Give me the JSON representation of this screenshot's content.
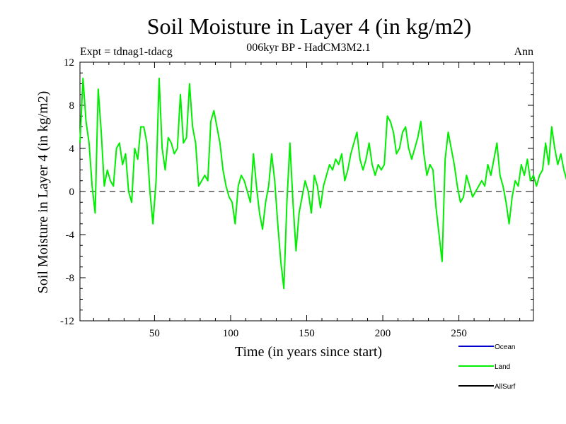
{
  "chart_data": {
    "type": "line",
    "title": "Soil Moisture in Layer 4 (in kg/m2)",
    "subtitle": "006kyr BP - HadCM3M2.1",
    "experiment": "Expt = tdnag1-tdacg",
    "period": "Ann",
    "xlabel": "Time (in years since start)",
    "ylabel": "Soil Moisture in Layer 4 (in kg/m2)",
    "xlim": [
      1,
      299
    ],
    "ylim": [
      -12,
      12
    ],
    "xticks": [
      50,
      100,
      150,
      200,
      250
    ],
    "yticks": [
      -12,
      -8,
      -4,
      0,
      4,
      8,
      12
    ],
    "legend": [
      {
        "name": "Ocean",
        "color": "#0000cc"
      },
      {
        "name": "Land",
        "color": "#00ee00"
      },
      {
        "name": "AllSurf",
        "color": "#000000"
      }
    ],
    "series": [
      {
        "name": "Land",
        "color": "#00ee00",
        "x_start": 1,
        "x_step": 2,
        "values": [
          4.5,
          10.5,
          6.5,
          4.5,
          0.5,
          -2.0,
          9.5,
          5.5,
          0.5,
          2.0,
          1.0,
          0.5,
          4.0,
          4.5,
          2.5,
          3.5,
          0.0,
          -1.0,
          4.0,
          3.0,
          6.0,
          6.0,
          4.5,
          0.0,
          -3.0,
          1.0,
          10.5,
          4.0,
          2.0,
          5.0,
          4.5,
          3.5,
          4.0,
          9.0,
          4.5,
          5.0,
          10.0,
          6.0,
          4.5,
          0.5,
          1.0,
          1.5,
          1.0,
          6.5,
          7.5,
          6.0,
          4.5,
          2.0,
          0.5,
          -0.5,
          -1.0,
          -3.0,
          0.5,
          1.5,
          1.0,
          0.0,
          -1.0,
          3.5,
          0.5,
          -2.0,
          -3.5,
          -1.0,
          0.5,
          3.5,
          1.0,
          -3.0,
          -6.5,
          -9.0,
          -1.0,
          4.5,
          -1.0,
          -5.5,
          -2.0,
          -0.5,
          1.0,
          0.0,
          -2.0,
          1.5,
          0.5,
          -1.5,
          0.5,
          1.5,
          2.5,
          2.0,
          3.0,
          2.5,
          3.5,
          1.0,
          2.0,
          3.5,
          4.5,
          5.5,
          3.0,
          2.0,
          3.0,
          4.5,
          2.5,
          1.5,
          2.5,
          2.0,
          2.5,
          7.0,
          6.5,
          5.5,
          3.5,
          4.0,
          5.5,
          6.0,
          4.0,
          3.0,
          4.0,
          5.0,
          6.5,
          3.5,
          1.5,
          2.5,
          2.0,
          -1.5,
          -4.0,
          -6.5,
          3.0,
          5.5,
          4.0,
          2.5,
          0.5,
          -1.0,
          -0.5,
          1.5,
          0.5,
          -0.5,
          0.0,
          0.5,
          1.0,
          0.5,
          2.5,
          1.5,
          3.0,
          4.5,
          1.5,
          0.5,
          -1.0,
          -3.0,
          -0.5,
          1.0,
          0.5,
          2.5,
          1.5,
          3.0,
          1.0,
          1.5,
          0.5,
          1.5,
          2.0,
          4.5,
          2.5,
          6.0,
          4.0,
          2.5,
          3.5,
          2.0,
          1.0,
          -2.0,
          -3.5,
          -1.5,
          -0.5,
          0.0,
          1.5,
          3.0,
          2.0,
          4.5,
          3.5,
          6.5,
          4.0,
          3.5,
          2.0,
          1.5,
          2.5,
          1.0,
          -1.0,
          -4.5,
          -6.0,
          -5.5,
          -3.0,
          -1.0,
          -2.0,
          -0.5,
          1.0,
          0.5,
          1.0,
          3.5,
          1.5,
          0.5,
          -1.0,
          -0.5,
          0.5,
          1.5,
          0.0,
          -2.0,
          -6.5,
          -5.0
        ]
      }
    ]
  }
}
